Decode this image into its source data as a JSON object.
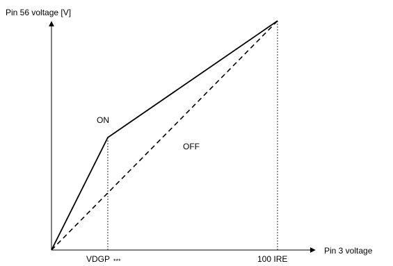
{
  "diagram": {
    "y_axis_label": "Pin 56 voltage [V]",
    "x_axis_label": "Pin 3 voltage",
    "tick_labels": {
      "vdgp_main": "VDGP",
      "vdgp_sub": "***",
      "ire_100": "100 IRE"
    },
    "curves": {
      "on_label": "ON",
      "off_label": "OFF"
    },
    "colors": {
      "line": "#000000",
      "background": "#ffffff"
    }
  }
}
